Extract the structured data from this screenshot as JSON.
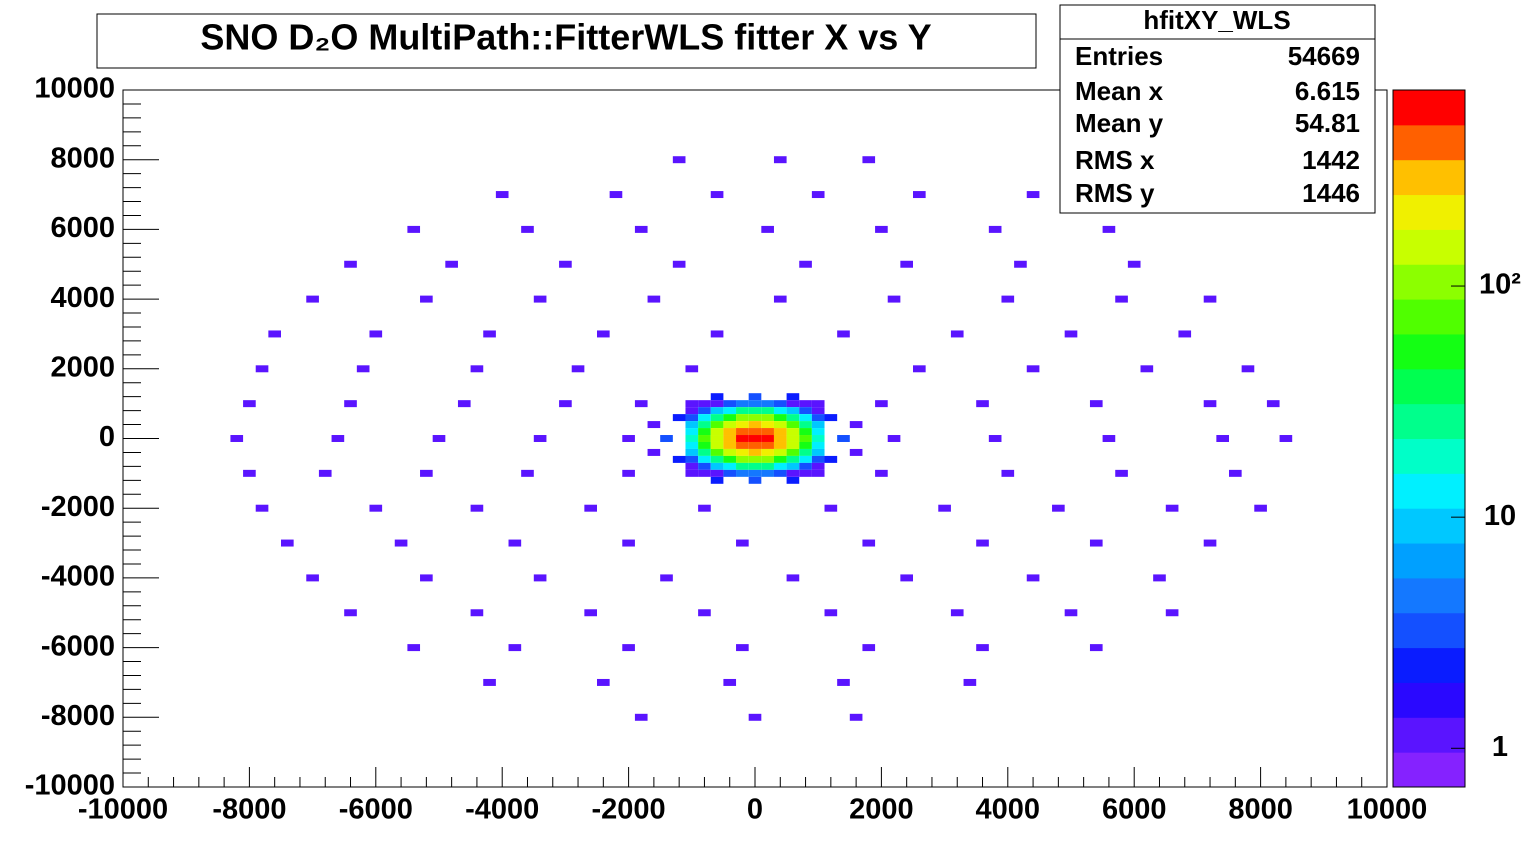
{
  "chart_data": {
    "type": "heatmap",
    "title": "SNO D₂O MultiPath::FitterWLS  fitter X vs Y",
    "xlim": [
      -10000,
      10000
    ],
    "ylim": [
      -10000,
      10000
    ],
    "xticks": [
      -10000,
      -8000,
      -6000,
      -4000,
      -2000,
      0,
      2000,
      4000,
      6000,
      8000,
      10000
    ],
    "yticks": [
      -10000,
      -8000,
      -6000,
      -4000,
      -2000,
      0,
      2000,
      4000,
      6000,
      8000,
      10000
    ],
    "zlim": [
      0.68,
      705
    ],
    "zticks": [
      1,
      10,
      {
        "value": 100,
        "label": "10²"
      }
    ],
    "log_z": true,
    "palette": [
      "#8522ff",
      "#5a14ff",
      "#2a08ff",
      "#0a1cff",
      "#1450ff",
      "#1478ff",
      "#00a0ff",
      "#00c8ff",
      "#00f0ff",
      "#00ffc8",
      "#00ff8c",
      "#00ff50",
      "#14ff14",
      "#50ff00",
      "#8cff00",
      "#c8ff00",
      "#f0f000",
      "#ffc000",
      "#ff6000",
      "#ff0000"
    ],
    "x": [
      -1000,
      -800,
      -600,
      -400,
      -200,
      0,
      200,
      400,
      600,
      800,
      1000
    ],
    "y": [
      1000,
      800,
      600,
      400,
      200,
      0,
      -200,
      -400,
      -600,
      -800,
      -1000
    ],
    "z": [
      [
        1,
        1,
        1,
        3,
        4,
        5,
        4,
        3,
        1,
        1,
        1
      ],
      [
        1,
        3,
        8,
        15,
        23,
        26,
        23,
        15,
        8,
        3,
        1
      ],
      [
        3,
        11,
        30,
        59,
        90,
        103,
        90,
        59,
        30,
        11,
        3
      ],
      [
        9,
        30,
        79,
        158,
        239,
        275,
        239,
        158,
        79,
        30,
        9
      ],
      [
        15,
        54,
        142,
        284,
        430,
        494,
        430,
        284,
        142,
        54,
        15
      ],
      [
        19,
        65,
        172,
        345,
        522,
        600,
        522,
        345,
        172,
        65,
        19
      ],
      [
        15,
        54,
        142,
        284,
        430,
        494,
        430,
        284,
        142,
        54,
        15
      ],
      [
        9,
        30,
        79,
        158,
        239,
        275,
        239,
        158,
        79,
        30,
        9
      ],
      [
        3,
        11,
        30,
        59,
        90,
        103,
        90,
        59,
        30,
        11,
        3
      ],
      [
        1,
        3,
        8,
        15,
        23,
        26,
        23,
        15,
        8,
        3,
        1
      ],
      [
        1,
        1,
        1,
        3,
        4,
        5,
        4,
        3,
        1,
        1,
        1
      ]
    ],
    "sparse_bins": {
      "x": [
        -1200,
        400,
        1800,
        -4000,
        -2200,
        -600,
        1000,
        2600,
        4400,
        -5400,
        -3600,
        -1800,
        200,
        2000,
        3800,
        5600,
        -6400,
        -4800,
        -3000,
        -1200,
        800,
        2400,
        4200,
        6000,
        -7000,
        -5200,
        -3400,
        -1600,
        400,
        2200,
        4000,
        5800,
        7200,
        -7600,
        -6000,
        -4200,
        -2400,
        -600,
        1400,
        3200,
        5000,
        6800,
        -7800,
        -6200,
        -4400,
        -2800,
        -1000,
        2600,
        4400,
        6200,
        7800,
        -8000,
        -6400,
        -4600,
        -3000,
        -1800,
        2000,
        3600,
        5400,
        7200,
        8200,
        -8200,
        -6600,
        -5000,
        -3400,
        -2000,
        2200,
        3800,
        5600,
        7400,
        8400,
        -8000,
        -6800,
        -5200,
        -3600,
        -2000,
        2000,
        4000,
        5800,
        7600,
        -7800,
        -6000,
        -4400,
        -2600,
        -800,
        1200,
        3000,
        4800,
        6600,
        8000,
        -7400,
        -5600,
        -3800,
        -2000,
        -200,
        1800,
        3600,
        5400,
        7200,
        -7000,
        -5200,
        -3400,
        -1400,
        600,
        2400,
        4400,
        6400,
        -6400,
        -4400,
        -2600,
        -800,
        1200,
        3200,
        5000,
        6600,
        -5400,
        -3800,
        -2000,
        -200,
        1800,
        3600,
        5400,
        -4200,
        -2400,
        -400,
        1400,
        3400,
        -1800,
        0,
        1600,
        -1400,
        1400,
        -1200,
        1200,
        -1200,
        1200,
        0,
        0,
        -600,
        600,
        -600,
        600,
        -1600,
        1600,
        -1600,
        1600
      ],
      "y": [
        8000,
        8000,
        8000,
        7000,
        7000,
        7000,
        7000,
        7000,
        7000,
        6000,
        6000,
        6000,
        6000,
        6000,
        6000,
        6000,
        5000,
        5000,
        5000,
        5000,
        5000,
        5000,
        5000,
        5000,
        4000,
        4000,
        4000,
        4000,
        4000,
        4000,
        4000,
        4000,
        4000,
        3000,
        3000,
        3000,
        3000,
        3000,
        3000,
        3000,
        3000,
        3000,
        2000,
        2000,
        2000,
        2000,
        2000,
        2000,
        2000,
        2000,
        2000,
        1000,
        1000,
        1000,
        1000,
        1000,
        1000,
        1000,
        1000,
        1000,
        1000,
        0,
        0,
        0,
        0,
        0,
        0,
        0,
        0,
        0,
        0,
        -1000,
        -1000,
        -1000,
        -1000,
        -1000,
        -1000,
        -1000,
        -1000,
        -1000,
        -2000,
        -2000,
        -2000,
        -2000,
        -2000,
        -2000,
        -2000,
        -2000,
        -2000,
        -2000,
        -3000,
        -3000,
        -3000,
        -3000,
        -3000,
        -3000,
        -3000,
        -3000,
        -3000,
        -4000,
        -4000,
        -4000,
        -4000,
        -4000,
        -4000,
        -4000,
        -4000,
        -5000,
        -5000,
        -5000,
        -5000,
        -5000,
        -5000,
        -5000,
        -5000,
        -6000,
        -6000,
        -6000,
        -6000,
        -6000,
        -6000,
        -6000,
        -7000,
        -7000,
        -7000,
        -7000,
        -7000,
        -8000,
        -8000,
        -8000,
        0,
        0,
        600,
        600,
        -600,
        -600,
        1200,
        -1200,
        1200,
        1200,
        -1200,
        -1200,
        400,
        400,
        -400,
        -400
      ],
      "z": [
        1,
        1,
        1,
        1,
        1,
        1,
        1,
        1,
        1,
        1,
        1,
        1,
        1,
        1,
        1,
        1,
        1,
        1,
        1,
        1,
        1,
        1,
        1,
        1,
        1,
        1,
        1,
        1,
        1,
        1,
        1,
        1,
        1,
        1,
        1,
        1,
        1,
        1,
        1,
        1,
        1,
        1,
        1,
        1,
        1,
        1,
        1,
        1,
        1,
        1,
        1,
        1,
        1,
        1,
        1,
        1,
        1,
        1,
        1,
        1,
        1,
        1,
        1,
        1,
        1,
        1,
        1,
        1,
        1,
        1,
        1,
        1,
        1,
        1,
        1,
        1,
        1,
        1,
        1,
        1,
        1,
        1,
        1,
        1,
        1,
        1,
        1,
        1,
        1,
        1,
        1,
        1,
        1,
        1,
        1,
        1,
        1,
        1,
        1,
        1,
        1,
        1,
        1,
        1,
        1,
        1,
        1,
        1,
        1,
        1,
        1,
        1,
        1,
        1,
        1,
        1,
        1,
        1,
        1,
        1,
        1,
        1,
        1,
        1,
        1,
        1,
        1,
        1,
        1,
        1,
        3,
        3,
        2,
        2,
        2,
        2,
        3,
        3,
        2,
        2,
        2,
        2,
        1,
        1,
        1,
        1
      ]
    },
    "stats": {
      "name": "hfitXY_WLS",
      "rows": [
        {
          "label": "Entries",
          "value": 54669
        },
        {
          "label": "Mean x",
          "value": 6.615
        },
        {
          "label": "Mean y",
          "value": 54.81
        },
        {
          "label": "RMS x",
          "value": 1442
        },
        {
          "label": "RMS y",
          "value": 1446
        }
      ]
    }
  }
}
